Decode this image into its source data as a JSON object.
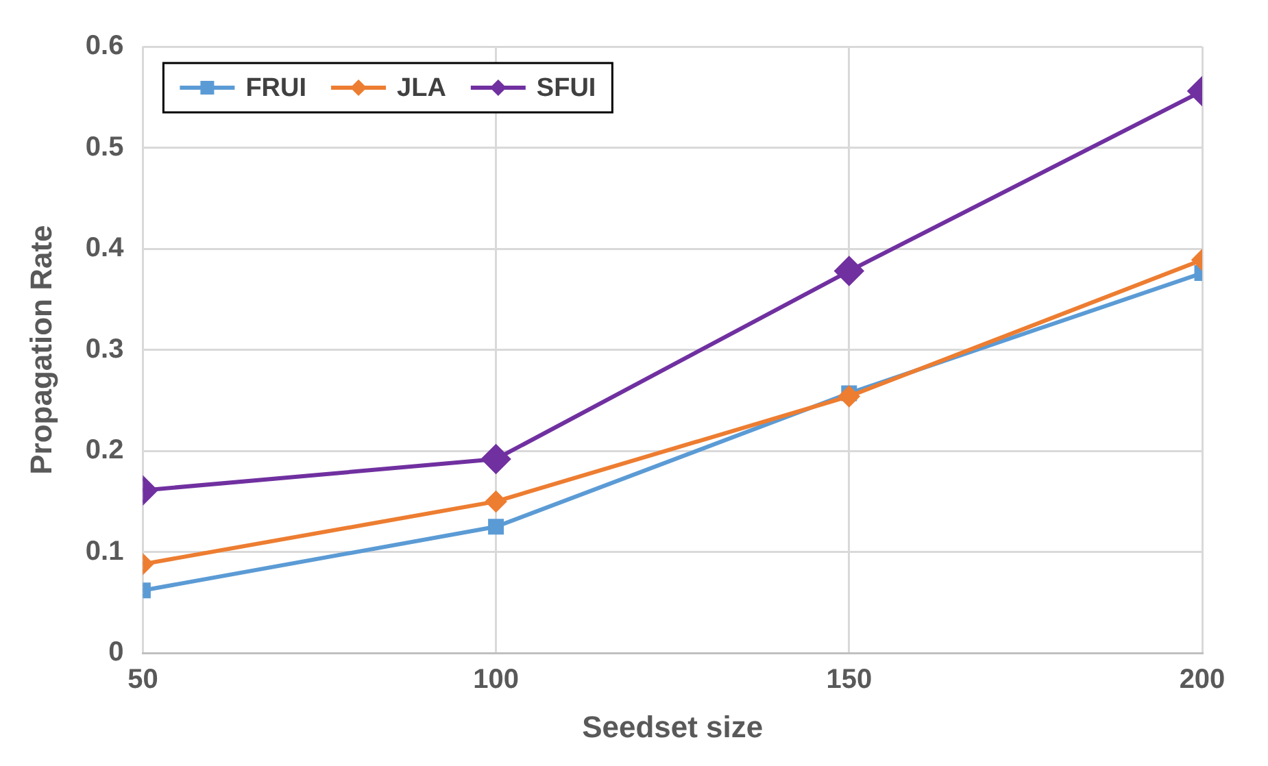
{
  "chart_data": {
    "type": "line",
    "xlabel": "Seedset size",
    "ylabel": "Propagation Rate",
    "x": [
      50,
      100,
      150,
      200
    ],
    "xlim": [
      50,
      200
    ],
    "xticks": [
      50,
      100,
      150,
      200
    ],
    "ylim": [
      0,
      0.6
    ],
    "yticks": [
      0,
      0.1,
      0.2,
      0.3,
      0.4,
      0.5,
      0.6
    ],
    "grid": true,
    "legend": "top left",
    "line_style": "solid",
    "series": [
      {
        "name": "FRUI",
        "color": "#5b9bd5",
        "marker": "square",
        "values": [
          0.062,
          0.125,
          0.257,
          0.376
        ]
      },
      {
        "name": "JLA",
        "color": "#ed7d31",
        "marker": "diamond",
        "values": [
          0.088,
          0.15,
          0.254,
          0.389
        ]
      },
      {
        "name": "SFUI",
        "color": "#7030a0",
        "marker": "diamond",
        "values": [
          0.161,
          0.192,
          0.378,
          0.556
        ]
      }
    ]
  }
}
